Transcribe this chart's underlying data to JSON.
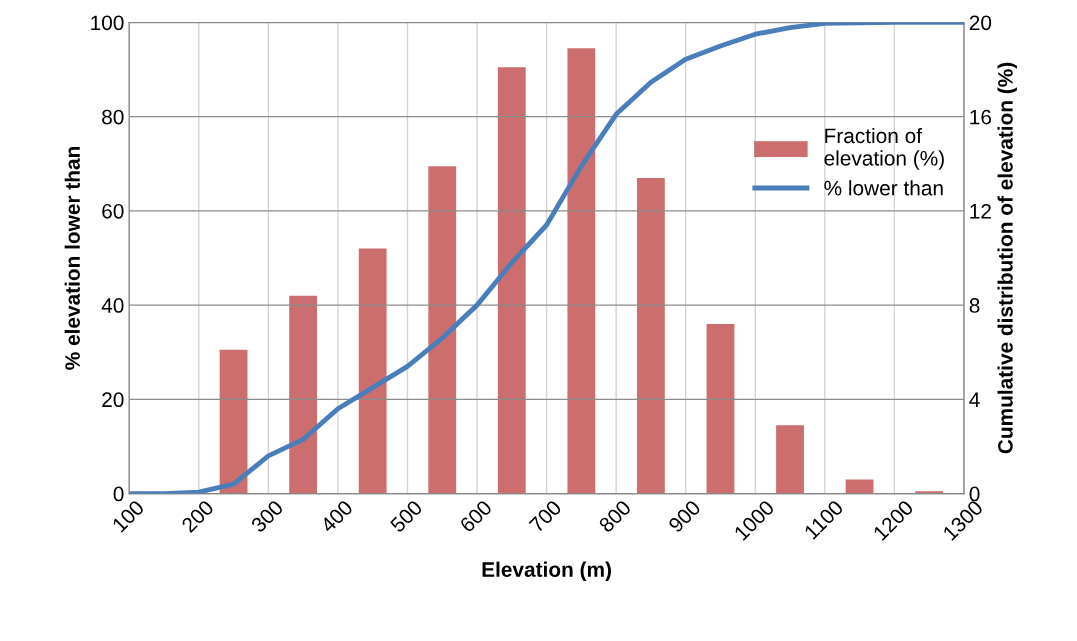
{
  "chart_data": {
    "type": "bar",
    "xlabel": "Elevation (m)",
    "ylabel": "% elevation lower than",
    "y2label": "Cumulative distribution of elevation (%)",
    "xlim": [
      100,
      1300
    ],
    "xticks": [
      100,
      200,
      300,
      400,
      500,
      600,
      700,
      800,
      900,
      1000,
      1100,
      1200,
      1300
    ],
    "ylim": [
      0,
      100
    ],
    "yticks": [
      0,
      20,
      40,
      60,
      80,
      100
    ],
    "y2lim": [
      0,
      20
    ],
    "y2ticks": [
      0,
      4,
      8,
      12,
      16,
      20
    ],
    "grid": true,
    "legend": "right",
    "series": [
      {
        "name": "Fraction of elevation (%)",
        "axis": "y2",
        "color": "#cc6e6e",
        "x": [
          250,
          350,
          450,
          550,
          650,
          750,
          850,
          950,
          1050,
          1150,
          1250
        ],
        "values": [
          6.1,
          8.4,
          10.4,
          13.9,
          18.1,
          18.9,
          13.4,
          7.2,
          2.9,
          0.6,
          0.1
        ]
      },
      {
        "name": "% lower than",
        "type": "line",
        "axis": "y",
        "color": "#4a7ebb",
        "x": [
          100,
          150,
          200,
          250,
          300,
          350,
          400,
          450,
          500,
          550,
          600,
          650,
          700,
          750,
          800,
          850,
          900,
          950,
          1000,
          1050,
          1100,
          1200,
          1300
        ],
        "values": [
          0,
          0,
          0.3,
          2,
          8,
          11.5,
          18,
          22.5,
          27,
          33,
          40,
          49,
          57,
          69.5,
          80.5,
          87.3,
          92.2,
          95,
          97.5,
          98.9,
          99.8,
          100,
          100
        ]
      }
    ]
  }
}
